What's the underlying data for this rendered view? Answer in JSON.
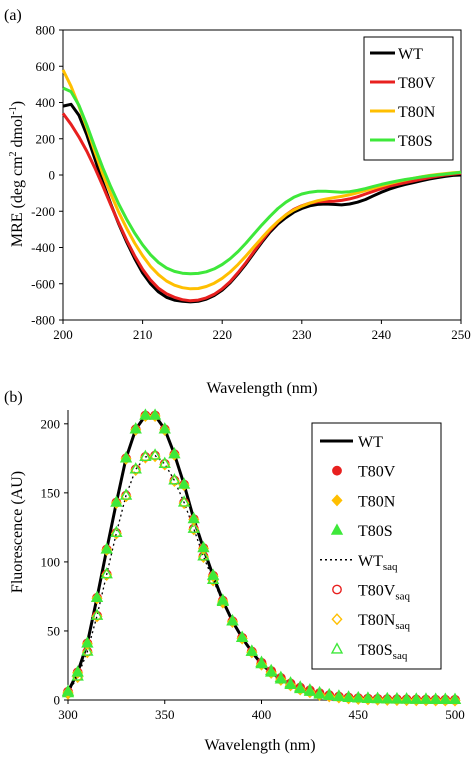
{
  "colors": {
    "WT": "#000000",
    "T80V": "#e8201f",
    "T80N": "#ffbf00",
    "T80S": "#3ee83a"
  },
  "chart_data": [
    {
      "panel": "(a)",
      "type": "line",
      "xlabel": "Wavelength (nm)",
      "ylabel_parts": [
        "MRE (deg cm",
        "2",
        " dmol",
        "-1",
        ")"
      ],
      "xlim": [
        200,
        250
      ],
      "ylim": [
        -800,
        800
      ],
      "xticks": [
        "200",
        "210",
        "220",
        "230",
        "240",
        "250"
      ],
      "yticks": [
        "800",
        "600",
        "400",
        "200",
        "0",
        "-200",
        "-400",
        "-600",
        "-800"
      ],
      "legend": [
        "WT",
        "T80V",
        "T80N",
        "T80S"
      ],
      "x": [
        200,
        201,
        202,
        203,
        204,
        205,
        206,
        207,
        208,
        209,
        210,
        211,
        212,
        213,
        214,
        215,
        216,
        217,
        218,
        219,
        220,
        221,
        222,
        223,
        224,
        225,
        226,
        227,
        228,
        229,
        230,
        231,
        232,
        233,
        234,
        235,
        236,
        237,
        238,
        239,
        240,
        241,
        242,
        243,
        244,
        245,
        246,
        247,
        248,
        249,
        250
      ],
      "series": [
        {
          "name": "WT",
          "values": [
            380,
            390,
            330,
            220,
            90,
            -40,
            -160,
            -270,
            -370,
            -460,
            -540,
            -600,
            -645,
            -675,
            -690,
            -697,
            -700,
            -697,
            -685,
            -665,
            -635,
            -595,
            -545,
            -490,
            -430,
            -370,
            -315,
            -270,
            -235,
            -205,
            -185,
            -170,
            -162,
            -160,
            -162,
            -165,
            -160,
            -150,
            -135,
            -115,
            -95,
            -78,
            -64,
            -52,
            -42,
            -32,
            -22,
            -15,
            -8,
            -2,
            0
          ]
        },
        {
          "name": "T80V",
          "values": [
            340,
            280,
            210,
            130,
            40,
            -60,
            -165,
            -265,
            -360,
            -445,
            -520,
            -580,
            -625,
            -655,
            -675,
            -688,
            -694,
            -690,
            -678,
            -658,
            -628,
            -588,
            -538,
            -482,
            -422,
            -362,
            -305,
            -258,
            -220,
            -190,
            -170,
            -155,
            -148,
            -146,
            -145,
            -140,
            -132,
            -120,
            -105,
            -90,
            -75,
            -62,
            -52,
            -42,
            -33,
            -24,
            -15,
            -7,
            0,
            5,
            10
          ]
        },
        {
          "name": "T80N",
          "values": [
            580,
            490,
            380,
            260,
            130,
            5,
            -105,
            -205,
            -295,
            -375,
            -445,
            -505,
            -550,
            -585,
            -608,
            -622,
            -628,
            -626,
            -615,
            -597,
            -570,
            -535,
            -493,
            -446,
            -396,
            -346,
            -298,
            -256,
            -220,
            -193,
            -172,
            -155,
            -142,
            -133,
            -125,
            -118,
            -109,
            -98,
            -86,
            -73,
            -60,
            -48,
            -37,
            -27,
            -18,
            -10,
            -3,
            3,
            8,
            12,
            15
          ]
        },
        {
          "name": "T80S",
          "values": [
            480,
            460,
            385,
            275,
            155,
            40,
            -65,
            -160,
            -245,
            -320,
            -385,
            -440,
            -483,
            -513,
            -532,
            -542,
            -545,
            -543,
            -534,
            -518,
            -494,
            -462,
            -422,
            -375,
            -325,
            -275,
            -228,
            -185,
            -150,
            -123,
            -105,
            -95,
            -90,
            -90,
            -92,
            -95,
            -92,
            -85,
            -75,
            -63,
            -52,
            -42,
            -33,
            -25,
            -18,
            -11,
            -5,
            0,
            5,
            10,
            15
          ]
        }
      ]
    },
    {
      "panel": "(b)",
      "type": "line",
      "xlabel": "Wavelength (nm)",
      "ylabel": "Fluorescence (AU)",
      "xlim": [
        300,
        500
      ],
      "ylim": [
        0,
        210
      ],
      "xticks": [
        "300",
        "350",
        "400",
        "450",
        "500"
      ],
      "yticks": [
        "200",
        "150",
        "100",
        "50",
        "0"
      ],
      "legend": [
        {
          "name": "WT",
          "sub": "",
          "marker": "line"
        },
        {
          "name": "T80V",
          "sub": "",
          "marker": "circle-filled"
        },
        {
          "name": "T80N",
          "sub": "",
          "marker": "diamond-filled"
        },
        {
          "name": "T80S",
          "sub": "",
          "marker": "triangle-filled"
        },
        {
          "name": "WT",
          "sub": "saq",
          "marker": "dotted"
        },
        {
          "name": "T80V",
          "sub": "saq",
          "marker": "circle-open"
        },
        {
          "name": "T80N",
          "sub": "saq",
          "marker": "diamond-open"
        },
        {
          "name": "T80S",
          "sub": "saq",
          "marker": "triangle-open"
        }
      ],
      "x": [
        300,
        305,
        310,
        315,
        320,
        325,
        330,
        335,
        340,
        345,
        350,
        355,
        360,
        365,
        370,
        375,
        380,
        385,
        390,
        395,
        400,
        405,
        410,
        415,
        420,
        425,
        430,
        435,
        440,
        445,
        450,
        455,
        460,
        465,
        470,
        475,
        480,
        485,
        490,
        495,
        500
      ],
      "series": [
        {
          "name": "WT",
          "values": [
            6,
            20,
            41,
            74,
            109,
            143,
            175,
            196,
            206,
            206,
            196,
            178,
            156,
            131,
            110,
            90,
            72,
            57,
            45,
            35,
            26,
            20,
            15,
            11,
            8,
            6,
            4,
            3,
            2.2,
            1.6,
            1.2,
            0.9,
            0.7,
            0.5,
            0.4,
            0.3,
            0.25,
            0.2,
            0.15,
            0.1,
            0.1
          ]
        },
        {
          "name": "WTsaq",
          "values": [
            5,
            17,
            35,
            61,
            91,
            121,
            148,
            167,
            176,
            177,
            171,
            159,
            143,
            124,
            104,
            87,
            71,
            57,
            45,
            35,
            27,
            21,
            16,
            12,
            9,
            7,
            5,
            3.5,
            2.5,
            1.8,
            1.3,
            1,
            0.8,
            0.6,
            0.5,
            0.4,
            0.3,
            0.25,
            0.2,
            0.15,
            0.1
          ]
        }
      ]
    }
  ]
}
